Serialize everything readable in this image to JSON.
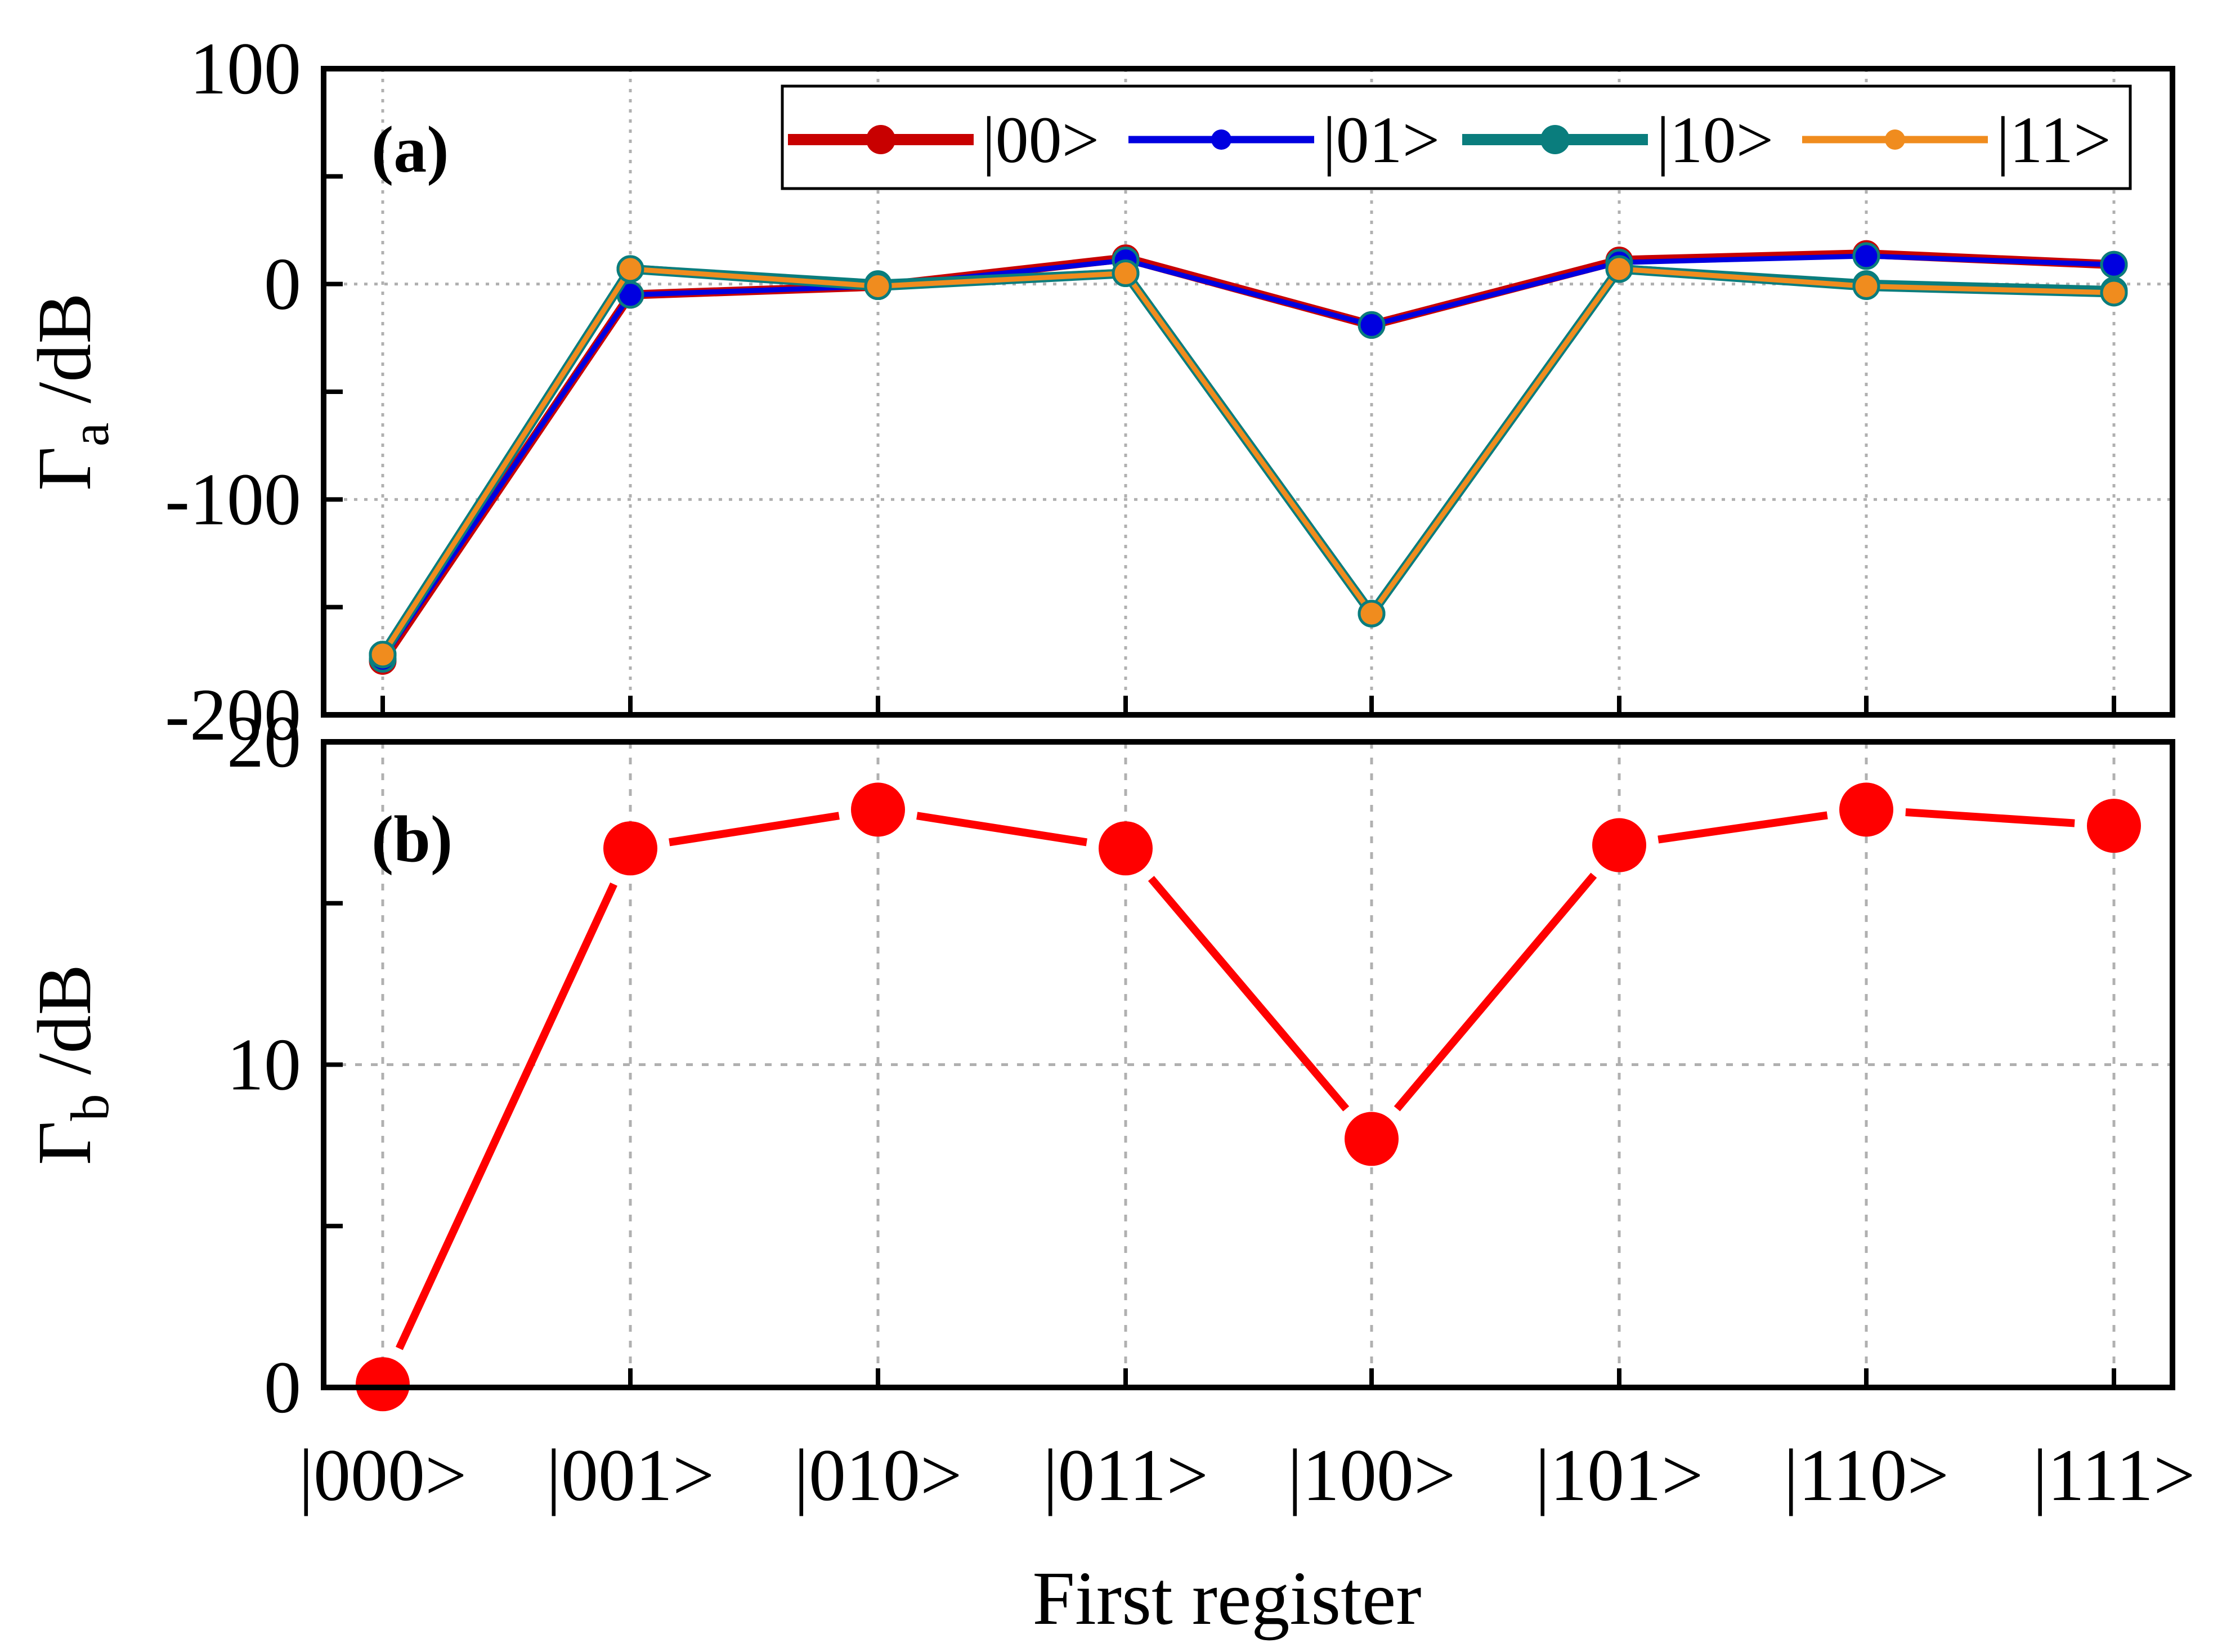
{
  "chart_data": [
    {
      "type": "line",
      "panel_label": "(a)",
      "ylabel_main": "Γ",
      "ylabel_sub": "a",
      "ylabel_unit": " /dB",
      "categories": [
        "|000>",
        "|001>",
        "|010>",
        "|011>",
        "|100>",
        "|101>",
        "|110>",
        "|111>"
      ],
      "ylim": [
        -200,
        100
      ],
      "yticks": [
        100,
        0,
        -100,
        -200
      ],
      "grid": true,
      "legend_position": "top-right",
      "series": [
        {
          "name": "|00>",
          "color": "#c80000",
          "values": [
            -175,
            -5,
            -1,
            12,
            -19,
            11,
            14,
            9
          ]
        },
        {
          "name": "|01>",
          "color": "#0000e0",
          "values": [
            -174,
            -5,
            -1,
            11,
            -19,
            10,
            13,
            9
          ]
        },
        {
          "name": "|10>",
          "color": "#0a7d7d",
          "values": [
            -172,
            7,
            0,
            5,
            -153,
            7,
            0,
            -3
          ]
        },
        {
          "name": "|11>",
          "color": "#f08c1e",
          "values": [
            -172,
            7,
            -1,
            5,
            -153,
            7,
            -1,
            -4
          ]
        }
      ]
    },
    {
      "type": "line",
      "panel_label": "(b)",
      "ylabel_main": "Γ",
      "ylabel_sub": "b",
      "ylabel_unit": " /dB",
      "xlabel": "First register",
      "categories": [
        "|000>",
        "|001>",
        "|010>",
        "|011>",
        "|100>",
        "|101>",
        "|110>",
        "|111>"
      ],
      "ylim": [
        0,
        20
      ],
      "yticks": [
        20,
        10,
        0
      ],
      "grid": true,
      "series": [
        {
          "name": "Γb",
          "color": "#ff0000",
          "values": [
            0.1,
            16.7,
            17.9,
            16.7,
            7.7,
            16.8,
            17.9,
            17.4
          ]
        }
      ]
    }
  ]
}
